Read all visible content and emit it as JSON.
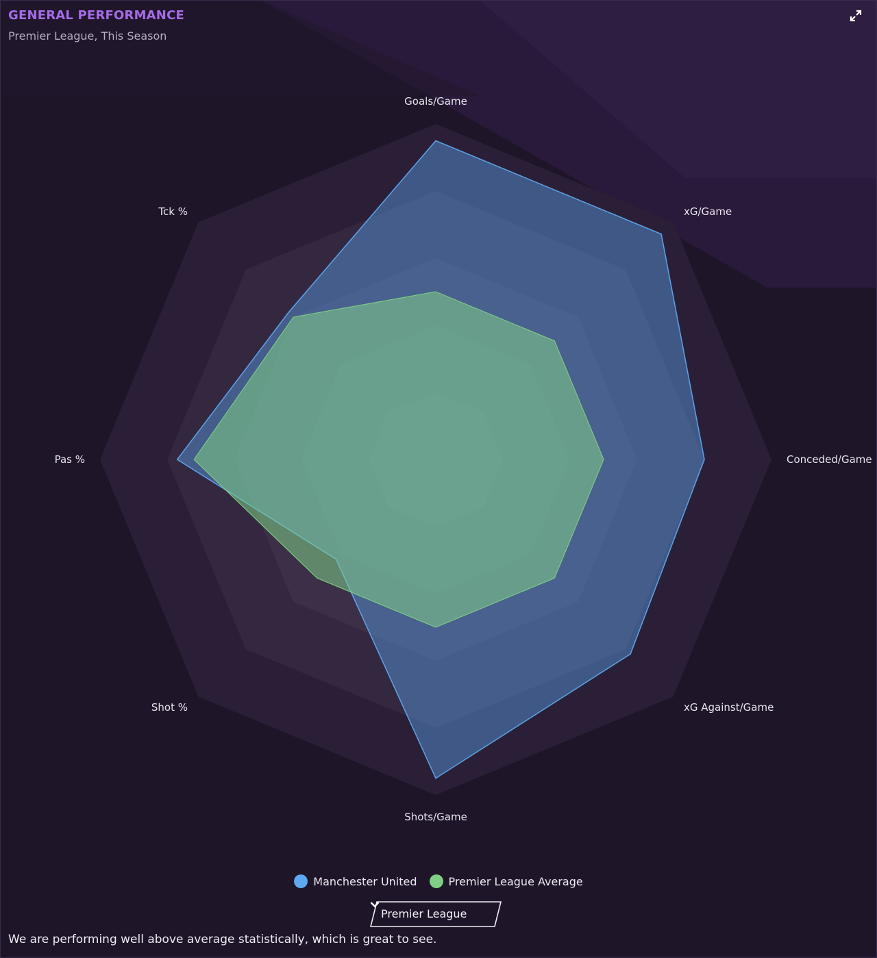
{
  "panel": {
    "title": "GENERAL PERFORMANCE",
    "subtitle": "Premier League, This Season",
    "expand_icon": "expand-icon",
    "summary": "We are performing well above average statistically, which is great to see."
  },
  "filter": {
    "selected": "Premier League",
    "icon": "chevron-down-icon"
  },
  "colors": {
    "background": "#1f1529",
    "title": "#a56ce6",
    "team": "#5ea8f2",
    "average": "#7fcf86"
  },
  "chart_data": {
    "type": "radar",
    "axes": [
      "Goals/Game",
      "xG/Game",
      "Conceded/Game",
      "xG Against/Game",
      "Shots/Game",
      "Shot %",
      "Pas %",
      "Tck %"
    ],
    "rings": 5,
    "range": [
      0,
      1
    ],
    "series": [
      {
        "name": "Manchester United",
        "color": "#5ea8f2",
        "values": [
          0.95,
          0.95,
          0.8,
          0.82,
          0.95,
          0.42,
          0.77,
          0.62
        ]
      },
      {
        "name": "Premier League Average",
        "color": "#7fcf86",
        "values": [
          0.5,
          0.5,
          0.5,
          0.5,
          0.5,
          0.5,
          0.72,
          0.6
        ]
      }
    ]
  }
}
